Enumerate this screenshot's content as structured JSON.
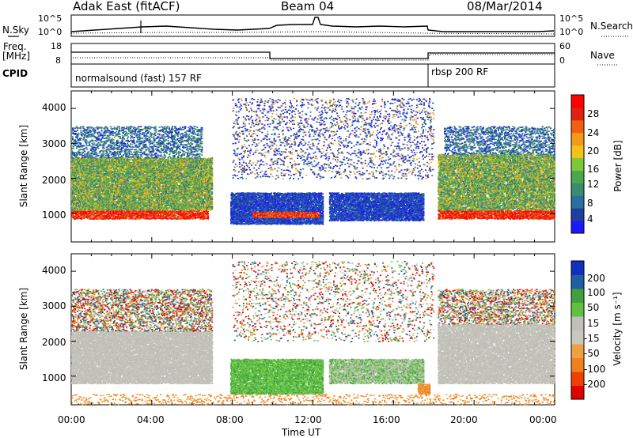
{
  "header": {
    "title": "Adak East (fitACF)",
    "beam": "Beam 04",
    "date": "08/Mar/2014"
  },
  "noise_panel": {
    "left_label": "N.Sky",
    "right_label": "N.Search",
    "left_ticks": [
      "10^5",
      "10^0"
    ],
    "right_ticks": [
      "10^5",
      "10^0"
    ]
  },
  "freq_panel": {
    "label_line1": "Freq.",
    "label_line2": "[MHz]",
    "left_ticks": [
      "18",
      "8"
    ],
    "right_ticks": [
      "60",
      "0"
    ],
    "right_label": "Nave"
  },
  "cpid_panel": {
    "label": "CPID",
    "program_1": "normalsound (fast) 157 RF",
    "program_2": "rbsp 200 RF"
  },
  "x_axis": {
    "label": "Time UT",
    "ticks": [
      "00:00",
      "04:00",
      "08:00",
      "12:00",
      "16:00",
      "20:00",
      "00:00"
    ]
  },
  "colors": {
    "power_scale": [
      "#1a1aff",
      "#1f3f9f",
      "#2a6fa0",
      "#3c8a70",
      "#4aa84a",
      "#7cc83a",
      "#f2c21a",
      "#f29a1a",
      "#f06010",
      "#e02010",
      "#ff0000"
    ],
    "velocity_scale": [
      "#e00000",
      "#f04000",
      "#f08020",
      "#f0a040",
      "#c8c8c0",
      "#c0c0b8",
      "#60c040",
      "#40a040",
      "#2060a0",
      "#1030c0"
    ]
  },
  "chart_data": [
    {
      "type": "heatmap",
      "title": "",
      "ylabel": "Slant Range [km]",
      "ylim": [
        180,
        4500
      ],
      "y_ticks": [
        "4000",
        "3000",
        "2000",
        "1000"
      ],
      "xlabel": "",
      "colorbar_label": "Power [dB]",
      "colorbar_ticks": [
        "28",
        "24",
        "20",
        "16",
        "12",
        "8",
        "4"
      ],
      "clim": [
        0,
        30
      ]
    },
    {
      "type": "heatmap",
      "title": "",
      "ylabel": "Slant Range [km]",
      "ylim": [
        180,
        4500
      ],
      "y_ticks": [
        "4000",
        "3000",
        "2000",
        "1000"
      ],
      "xlabel": "Time UT",
      "colorbar_label": "Velocity [m s⁻¹]",
      "colorbar_ticks": [
        "200",
        "100",
        "50",
        "15",
        "-15",
        "-50",
        "-100",
        "-200"
      ],
      "clim": [
        -250,
        250
      ]
    }
  ]
}
